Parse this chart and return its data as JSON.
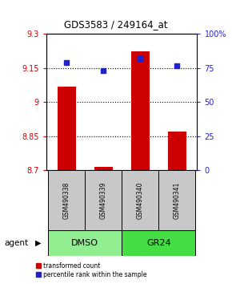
{
  "title": "GDS3583 / 249164_at",
  "samples": [
    "GSM490338",
    "GSM490339",
    "GSM490340",
    "GSM490341"
  ],
  "red_values": [
    9.07,
    8.715,
    9.225,
    8.87
  ],
  "blue_values": [
    79,
    73,
    82,
    77
  ],
  "ylim_left": [
    8.7,
    9.3
  ],
  "ylim_right": [
    0,
    100
  ],
  "yticks_left": [
    8.7,
    8.85,
    9.0,
    9.15,
    9.3
  ],
  "yticks_right": [
    0,
    25,
    50,
    75,
    100
  ],
  "ytick_labels_left": [
    "8.7",
    "8.85",
    "9",
    "9.15",
    "9.3"
  ],
  "ytick_labels_right": [
    "0",
    "25",
    "50",
    "75",
    "100%"
  ],
  "hlines": [
    8.85,
    9.0,
    9.15
  ],
  "groups": [
    {
      "label": "DMSO",
      "samples": [
        0,
        1
      ],
      "color": "#90EE90"
    },
    {
      "label": "GR24",
      "samples": [
        2,
        3
      ],
      "color": "#44DD44"
    }
  ],
  "agent_label": "agent",
  "red_color": "#CC0000",
  "blue_color": "#2222CC",
  "bar_width": 0.5,
  "legend_red": "transformed count",
  "legend_blue": "percentile rank within the sample",
  "gray_color": "#C8C8C8"
}
